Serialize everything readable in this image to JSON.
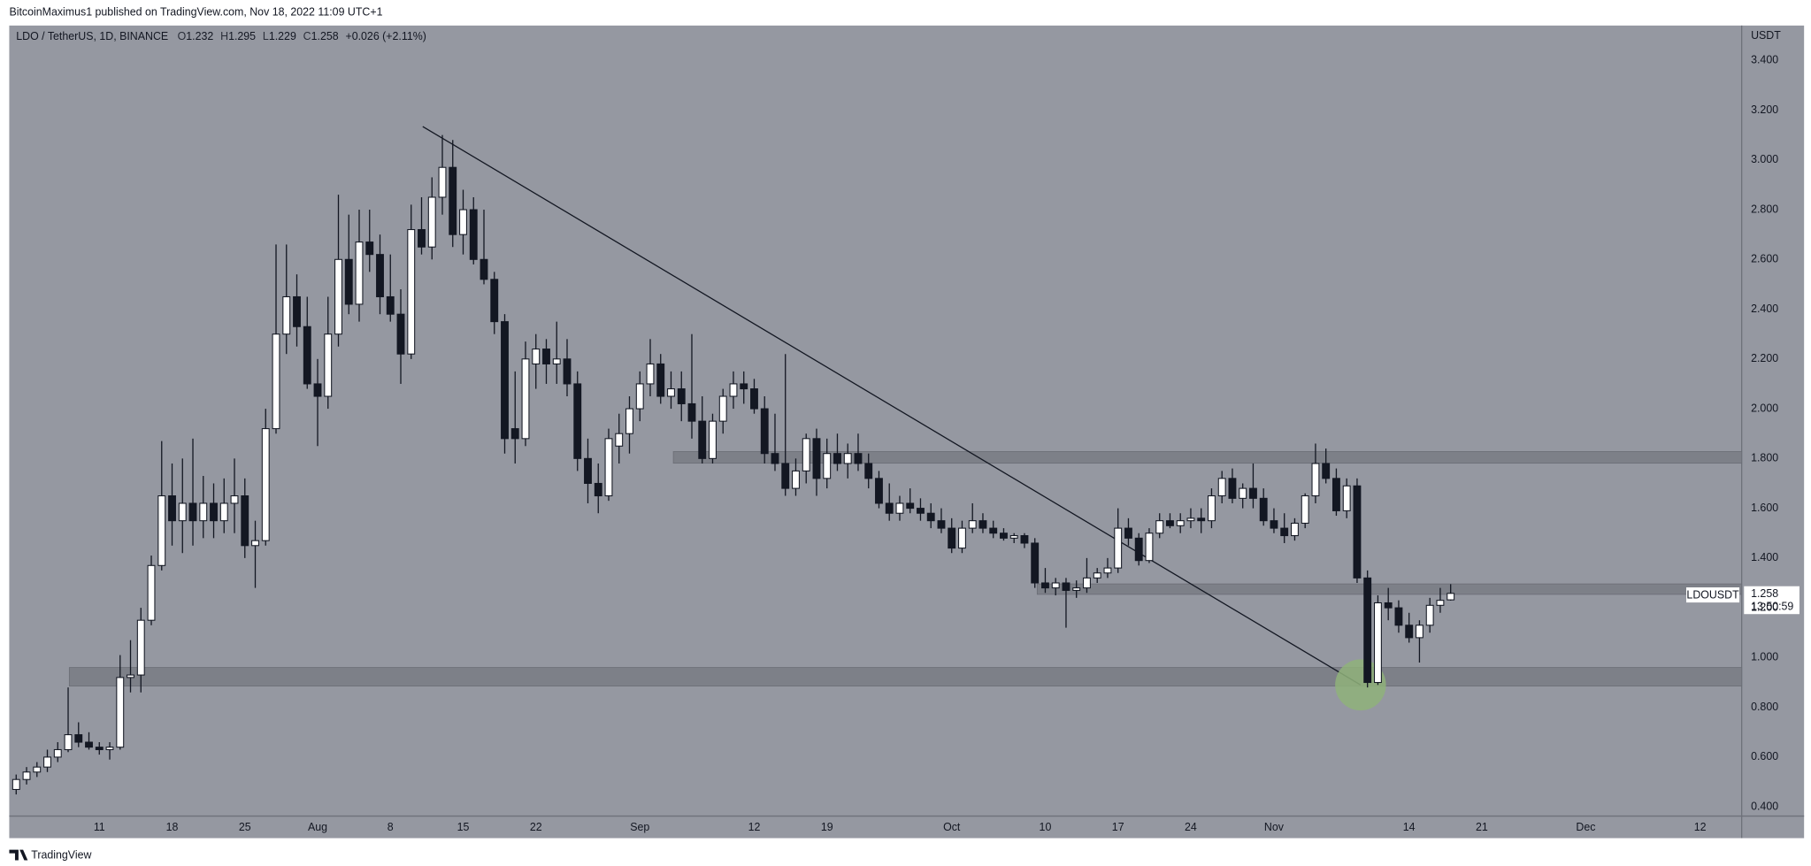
{
  "header": {
    "published": "BitcoinMaximus1 published on TradingView.com, Nov 18, 2022 11:09 UTC+1"
  },
  "footer": {
    "brand": "TradingView"
  },
  "chart_data": {
    "type": "candlestick",
    "title": "LDO / TetherUS, 1D, BINANCE",
    "ohlc_labels": [
      "O",
      "H",
      "L",
      "C"
    ],
    "change": "+0.026 (+2.11%)",
    "y_axis_label": "USDT",
    "symbol_label": "LDOUSDT",
    "countdown": "13:50:59",
    "up_color": "#ffffff",
    "down_color": "#131722",
    "background": "#9598a1",
    "grid": false,
    "categories": [
      null,
      null,
      null,
      null,
      null,
      null,
      null,
      null,
      "11",
      null,
      null,
      null,
      null,
      null,
      null,
      "18",
      null,
      null,
      null,
      null,
      null,
      null,
      "25",
      null,
      null,
      null,
      null,
      null,
      null,
      "Aug",
      null,
      null,
      null,
      null,
      null,
      null,
      "8",
      null,
      null,
      null,
      null,
      null,
      null,
      "15",
      null,
      null,
      null,
      null,
      null,
      null,
      "22",
      null,
      null,
      null,
      null,
      null,
      null,
      null,
      null,
      null,
      "Sep",
      null,
      null,
      null,
      null,
      null,
      null,
      null,
      null,
      null,
      null,
      "12",
      null,
      null,
      null,
      null,
      null,
      null,
      "19",
      null,
      null,
      null,
      null,
      null,
      null,
      null,
      null,
      null,
      null,
      null,
      "Oct",
      null,
      null,
      null,
      null,
      null,
      null,
      null,
      null,
      "10",
      null,
      null,
      null,
      null,
      null,
      null,
      "17",
      null,
      null,
      null,
      null,
      null,
      null,
      "24",
      null,
      null,
      null,
      null,
      null,
      null,
      null,
      "Nov",
      null,
      null,
      null,
      null,
      null,
      null,
      null,
      null,
      null,
      null,
      null,
      null,
      "14",
      null,
      null,
      null,
      null,
      null,
      null,
      "21",
      null,
      null,
      null,
      null,
      null,
      null,
      null,
      null,
      null,
      "Dec",
      null,
      null,
      null,
      null,
      null,
      null,
      null,
      null,
      null,
      null,
      "12"
    ],
    "open": [
      0.47,
      0.51,
      0.54,
      0.56,
      0.6,
      0.63,
      0.69,
      0.66,
      0.64,
      0.63,
      0.64,
      0.92,
      0.93,
      1.15,
      1.37,
      1.65,
      1.55,
      1.62,
      1.55,
      1.62,
      1.55,
      1.62,
      1.65,
      1.45,
      1.47,
      1.92,
      2.3,
      2.45,
      2.33,
      2.1,
      2.05,
      2.3,
      2.6,
      2.42,
      2.67,
      2.62,
      2.45,
      2.38,
      2.22,
      2.72,
      2.65,
      2.85,
      2.97,
      2.7,
      2.8,
      2.6,
      2.52,
      2.35,
      1.92,
      1.88,
      2.18,
      2.24,
      2.18,
      2.2,
      2.1,
      1.8,
      1.7,
      1.65,
      1.85,
      1.9,
      2.0,
      2.1,
      2.18,
      2.05,
      2.08,
      2.02,
      1.95,
      1.8,
      1.95,
      2.05,
      2.1,
      2.08,
      2.0,
      1.82,
      1.78,
      1.68,
      1.75,
      1.88,
      1.72,
      1.82,
      1.78,
      1.82,
      1.78,
      1.72,
      1.62,
      1.58,
      1.62,
      1.6,
      1.58,
      1.55,
      1.52,
      1.44,
      1.52,
      1.55,
      1.52,
      1.5,
      1.48,
      1.49,
      1.46,
      1.3,
      1.28,
      1.3,
      1.27,
      1.28,
      1.32,
      1.34,
      1.36,
      1.52,
      1.48,
      1.39,
      1.5,
      1.55,
      1.53,
      1.55,
      1.56,
      1.55,
      1.65,
      1.72,
      1.64,
      1.68,
      1.64,
      1.55,
      1.52,
      1.49,
      1.54,
      1.65,
      1.78,
      1.72,
      1.59,
      1.69,
      1.32,
      0.9,
      1.22,
      1.2,
      1.13,
      1.08,
      1.13,
      1.21,
      1.232,
      null,
      null,
      null,
      null,
      null,
      null,
      null,
      null,
      null,
      null,
      null,
      null,
      null,
      null,
      null,
      null,
      null,
      null,
      null,
      null,
      null,
      null,
      null,
      null
    ],
    "high": [
      0.53,
      0.56,
      0.58,
      0.63,
      0.66,
      0.88,
      0.74,
      0.7,
      0.66,
      0.66,
      1.01,
      1.07,
      1.2,
      1.41,
      1.87,
      1.78,
      1.8,
      1.88,
      1.73,
      1.7,
      1.72,
      1.8,
      1.72,
      1.55,
      2.0,
      2.66,
      2.66,
      2.54,
      2.45,
      2.2,
      2.45,
      2.86,
      2.78,
      2.8,
      2.8,
      2.7,
      2.62,
      2.48,
      2.82,
      2.85,
      2.93,
      3.1,
      3.08,
      2.88,
      2.85,
      2.8,
      2.55,
      2.38,
      2.15,
      2.27,
      2.3,
      2.28,
      2.35,
      2.28,
      2.15,
      1.88,
      1.78,
      1.92,
      1.98,
      2.05,
      2.15,
      2.28,
      2.22,
      2.15,
      2.15,
      2.3,
      2.05,
      1.98,
      2.08,
      2.15,
      2.15,
      2.12,
      2.05,
      1.98,
      2.22,
      1.8,
      1.9,
      1.92,
      1.88,
      1.9,
      1.86,
      1.9,
      1.82,
      1.75,
      1.7,
      1.65,
      1.68,
      1.64,
      1.62,
      1.6,
      1.56,
      1.55,
      1.62,
      1.58,
      1.55,
      1.52,
      1.5,
      1.5,
      1.48,
      1.36,
      1.32,
      1.32,
      1.31,
      1.4,
      1.36,
      1.4,
      1.6,
      1.56,
      1.5,
      1.52,
      1.58,
      1.58,
      1.58,
      1.6,
      1.6,
      1.68,
      1.75,
      1.76,
      1.7,
      1.78,
      1.68,
      1.6,
      1.58,
      1.56,
      1.66,
      1.86,
      1.84,
      1.76,
      1.72,
      1.72,
      1.35,
      1.25,
      1.28,
      1.23,
      1.18,
      1.15,
      1.24,
      1.28,
      1.295,
      null,
      null,
      null,
      null,
      null,
      null,
      null,
      null,
      null,
      null,
      null,
      null,
      null,
      null,
      null,
      null,
      null,
      null,
      null,
      null,
      null,
      null,
      null,
      null
    ],
    "low": [
      0.45,
      0.49,
      0.52,
      0.54,
      0.58,
      0.62,
      0.64,
      0.63,
      0.61,
      0.59,
      0.63,
      0.86,
      0.86,
      1.13,
      1.35,
      1.45,
      1.42,
      1.45,
      1.48,
      1.48,
      1.5,
      1.5,
      1.4,
      1.28,
      1.45,
      1.9,
      2.22,
      2.25,
      2.08,
      1.85,
      2.0,
      2.25,
      2.38,
      2.35,
      2.55,
      2.38,
      2.35,
      2.1,
      2.2,
      2.62,
      2.6,
      2.78,
      2.65,
      2.62,
      2.58,
      2.5,
      2.3,
      1.82,
      1.78,
      1.85,
      2.08,
      2.1,
      2.1,
      2.05,
      1.75,
      1.62,
      1.58,
      1.63,
      1.78,
      1.82,
      1.95,
      2.05,
      2.02,
      2.0,
      1.95,
      1.88,
      1.78,
      1.78,
      1.9,
      2.0,
      2.02,
      1.98,
      1.78,
      1.75,
      1.65,
      1.65,
      1.7,
      1.65,
      1.68,
      1.75,
      1.72,
      1.75,
      1.68,
      1.6,
      1.55,
      1.55,
      1.58,
      1.55,
      1.52,
      1.5,
      1.42,
      1.42,
      1.5,
      1.5,
      1.48,
      1.47,
      1.46,
      1.44,
      1.28,
      1.26,
      1.25,
      1.12,
      1.24,
      1.26,
      1.3,
      1.32,
      1.34,
      1.45,
      1.37,
      1.38,
      1.48,
      1.52,
      1.5,
      1.52,
      1.5,
      1.52,
      1.62,
      1.62,
      1.6,
      1.6,
      1.53,
      1.5,
      1.46,
      1.47,
      1.52,
      1.62,
      1.7,
      1.57,
      1.56,
      1.3,
      0.88,
      0.89,
      1.15,
      1.1,
      1.06,
      0.98,
      1.1,
      1.18,
      1.229,
      null,
      null,
      null,
      null,
      null,
      null,
      null,
      null,
      null,
      null,
      null,
      null,
      null,
      null,
      null,
      null,
      null,
      null,
      null,
      null,
      null,
      null,
      null,
      null
    ],
    "close": [
      0.51,
      0.54,
      0.56,
      0.6,
      0.63,
      0.69,
      0.66,
      0.64,
      0.63,
      0.64,
      0.92,
      0.93,
      1.15,
      1.37,
      1.65,
      1.55,
      1.62,
      1.55,
      1.62,
      1.55,
      1.62,
      1.65,
      1.45,
      1.47,
      1.92,
      2.3,
      2.45,
      2.33,
      2.1,
      2.05,
      2.3,
      2.6,
      2.42,
      2.67,
      2.62,
      2.45,
      2.38,
      2.22,
      2.72,
      2.65,
      2.85,
      2.97,
      2.7,
      2.8,
      2.6,
      2.52,
      2.35,
      1.88,
      1.88,
      2.2,
      2.24,
      2.18,
      2.2,
      2.1,
      1.8,
      1.7,
      1.65,
      1.88,
      1.9,
      2.0,
      2.1,
      2.18,
      2.05,
      2.08,
      2.02,
      1.95,
      1.8,
      1.95,
      2.05,
      2.1,
      2.08,
      2.0,
      1.82,
      1.78,
      1.68,
      1.75,
      1.88,
      1.72,
      1.82,
      1.78,
      1.82,
      1.78,
      1.72,
      1.62,
      1.58,
      1.62,
      1.6,
      1.58,
      1.55,
      1.52,
      1.44,
      1.52,
      1.55,
      1.52,
      1.5,
      1.48,
      1.49,
      1.46,
      1.3,
      1.28,
      1.3,
      1.27,
      1.28,
      1.32,
      1.34,
      1.36,
      1.52,
      1.48,
      1.39,
      1.5,
      1.55,
      1.53,
      1.55,
      1.56,
      1.55,
      1.65,
      1.72,
      1.64,
      1.68,
      1.64,
      1.55,
      1.52,
      1.49,
      1.54,
      1.65,
      1.78,
      1.72,
      1.59,
      1.69,
      1.32,
      0.9,
      1.22,
      1.2,
      1.13,
      1.08,
      1.13,
      1.21,
      1.23,
      1.258,
      null,
      null,
      null,
      null,
      null,
      null,
      null,
      null,
      null,
      null,
      null,
      null,
      null,
      null,
      null,
      null,
      null,
      null,
      null,
      null,
      null,
      null,
      null,
      null
    ],
    "ylim": [
      0.363,
      3.54
    ],
    "yticks": [
      {
        "value": 0.4,
        "label": "0.400"
      },
      {
        "value": 0.6,
        "label": "0.600"
      },
      {
        "value": 0.8,
        "label": "0.800"
      },
      {
        "value": 1.0,
        "label": "1.000"
      },
      {
        "value": 1.2,
        "label": "1.200"
      },
      {
        "value": 1.4,
        "label": "1.400"
      },
      {
        "value": 1.6,
        "label": "1.600"
      },
      {
        "value": 1.8,
        "label": "1.800"
      },
      {
        "value": 2.0,
        "label": "2.000"
      },
      {
        "value": 2.2,
        "label": "2.200"
      },
      {
        "value": 2.4,
        "label": "2.400"
      },
      {
        "value": 2.6,
        "label": "2.600"
      },
      {
        "value": 2.8,
        "label": "2.800"
      },
      {
        "value": 3.0,
        "label": "3.000"
      },
      {
        "value": 3.2,
        "label": "3.200"
      },
      {
        "value": 3.4,
        "label": "3.400"
      }
    ]
  }
}
